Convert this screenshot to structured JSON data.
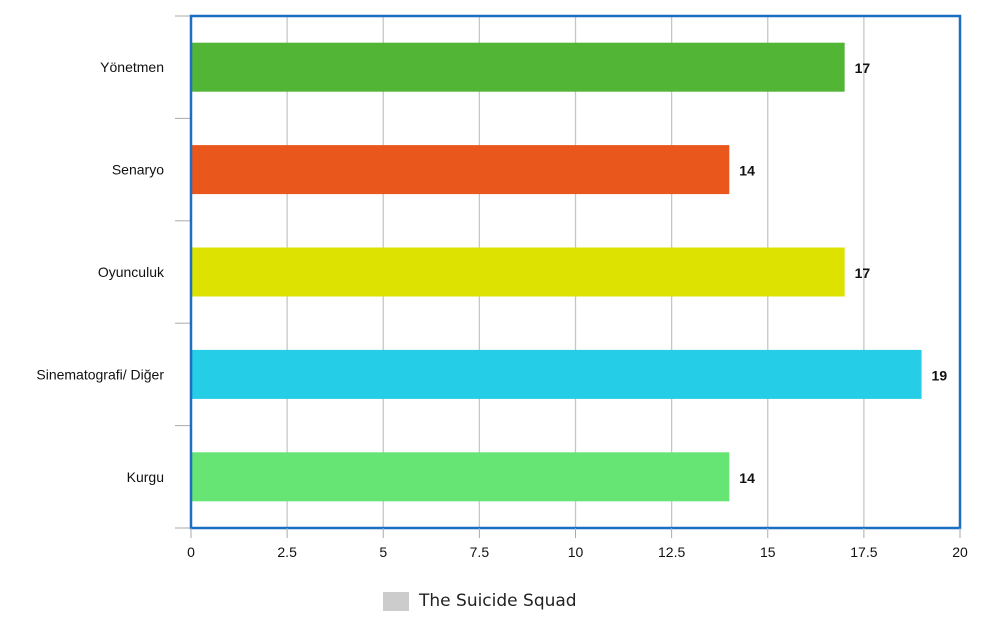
{
  "chart_data": {
    "type": "bar",
    "orientation": "horizontal",
    "categories": [
      "Yönetmen",
      "Senaryo",
      "Oyunculuk",
      "Sinematografi/ Diğer",
      "Kurgu"
    ],
    "values": [
      17,
      14,
      17,
      19,
      14
    ],
    "value_labels": [
      "17",
      "14",
      "17",
      "19",
      "14"
    ],
    "bar_colors": [
      "#52b535",
      "#ea571c",
      "#dde200",
      "#25cde6",
      "#66e574"
    ],
    "x_ticks": [
      "0",
      "2.5",
      "5",
      "7.5",
      "10",
      "12.5",
      "15",
      "17.5",
      "20"
    ],
    "xlim": [
      0,
      20
    ],
    "grid": true,
    "legend": {
      "position": "bottom-center",
      "entries": [
        "The Suicide Squad"
      ],
      "swatch_color": "#cccccc"
    },
    "title": "",
    "xlabel": "",
    "ylabel": ""
  },
  "colors": {
    "plot_border": "#1c6fc0",
    "grid": "#c6c6c6",
    "axis_ticks": "#aaaaaa"
  }
}
